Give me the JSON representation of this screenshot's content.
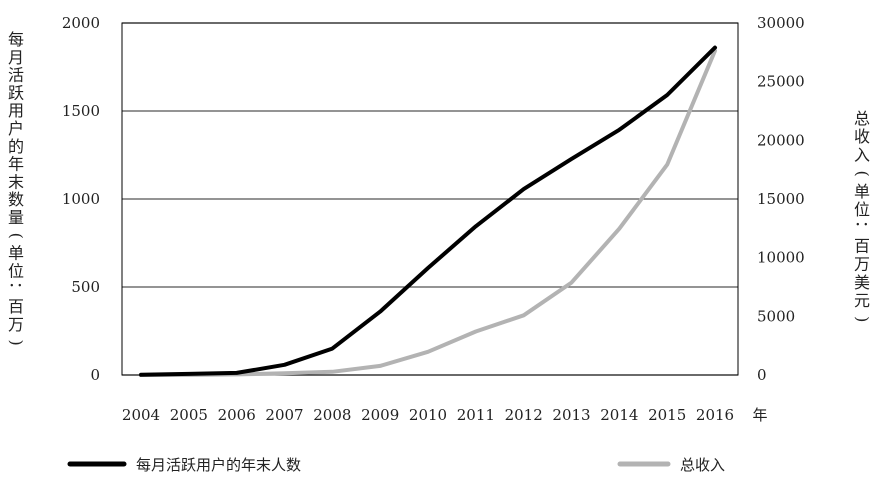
{
  "chart_data": {
    "type": "line",
    "categories": [
      "2004",
      "2005",
      "2006",
      "2007",
      "2008",
      "2009",
      "2010",
      "2011",
      "2012",
      "2013",
      "2014",
      "2015",
      "2016"
    ],
    "x_unit_label": "年",
    "left_axis": {
      "label": "每月活跃用户的年末数量(单位：百万)",
      "ylim": [
        0,
        2000
      ],
      "ticks": [
        0,
        500,
        1000,
        1500,
        2000
      ],
      "tick_labels": [
        "0",
        "500",
        "1000",
        "1500",
        "2000"
      ]
    },
    "right_axis": {
      "label": "总收入(单位：百万美元)",
      "ylim": [
        0,
        30000
      ],
      "ticks": [
        0,
        5000,
        10000,
        15000,
        20000,
        25000,
        30000
      ],
      "tick_labels": [
        "0",
        "5000",
        "10000",
        "15000",
        "20000",
        "25000",
        "30000"
      ]
    },
    "grid": true,
    "legend_position": "bottom",
    "series": [
      {
        "name": "每月活跃用户的年末人数",
        "axis": "left",
        "color": "#000000",
        "values": [
          1,
          6,
          12,
          58,
          150,
          360,
          608,
          845,
          1056,
          1228,
          1393,
          1591,
          1860
        ]
      },
      {
        "name": "总收入",
        "axis": "right",
        "color": "#b3b3b3",
        "values": [
          0,
          9,
          48,
          153,
          272,
          777,
          1974,
          3711,
          5089,
          7872,
          12466,
          17928,
          27638
        ]
      }
    ]
  }
}
